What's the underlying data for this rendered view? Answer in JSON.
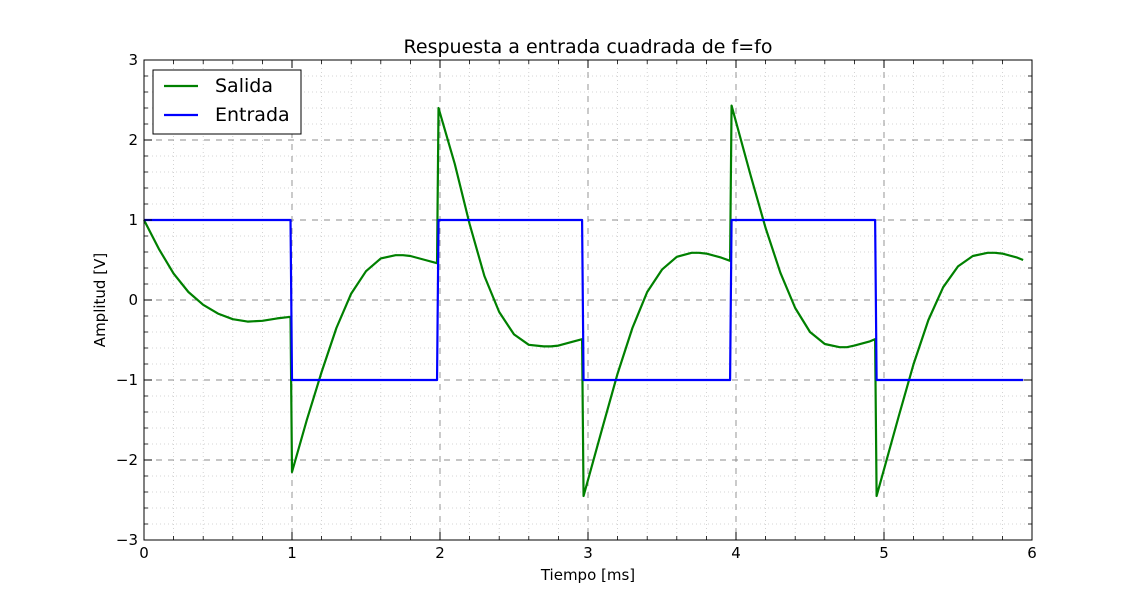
{
  "chart_data": {
    "type": "line",
    "title": "Respuesta a entrada cuadrada de f=fo",
    "xlabel": "Tiempo [ms]",
    "ylabel": "Amplitud [V]",
    "xlim": [
      0,
      6
    ],
    "ylim": [
      -3,
      3
    ],
    "x_ticks": [
      "0",
      "1",
      "2",
      "3",
      "4",
      "5",
      "6"
    ],
    "y_ticks": [
      "−3",
      "−2",
      "−1",
      "0",
      "1",
      "2",
      "3"
    ],
    "grid": "major dashed, minor dotted",
    "legend_position": "top-left",
    "series": [
      {
        "name": "Salida",
        "color": "#008000",
        "x": [
          0,
          0.1,
          0.2,
          0.3,
          0.4,
          0.5,
          0.6,
          0.7,
          0.8,
          0.9,
          0.99,
          1.0,
          1.1,
          1.2,
          1.3,
          1.4,
          1.5,
          1.6,
          1.7,
          1.75,
          1.8,
          1.9,
          1.98,
          1.99,
          2.1,
          2.2,
          2.3,
          2.4,
          2.5,
          2.6,
          2.7,
          2.75,
          2.8,
          2.9,
          2.96,
          2.97,
          3.1,
          3.2,
          3.3,
          3.4,
          3.5,
          3.6,
          3.7,
          3.75,
          3.8,
          3.9,
          3.96,
          3.97,
          4.1,
          4.2,
          4.3,
          4.4,
          4.5,
          4.6,
          4.7,
          4.75,
          4.8,
          4.9,
          4.94,
          4.95,
          5.1,
          5.2,
          5.3,
          5.4,
          5.5,
          5.6,
          5.7,
          5.75,
          5.8,
          5.9,
          5.94
        ],
        "y": [
          1.0,
          0.64,
          0.33,
          0.1,
          -0.06,
          -0.17,
          -0.24,
          -0.27,
          -0.26,
          -0.23,
          -0.21,
          -2.15,
          -1.5,
          -0.9,
          -0.35,
          0.08,
          0.36,
          0.52,
          0.56,
          0.56,
          0.55,
          0.5,
          0.46,
          2.4,
          1.7,
          0.95,
          0.3,
          -0.15,
          -0.43,
          -0.56,
          -0.58,
          -0.58,
          -0.57,
          -0.52,
          -0.49,
          -2.45,
          -1.58,
          -0.92,
          -0.35,
          0.1,
          0.38,
          0.54,
          0.59,
          0.59,
          0.58,
          0.53,
          0.49,
          2.43,
          1.55,
          0.9,
          0.34,
          -0.1,
          -0.4,
          -0.55,
          -0.59,
          -0.59,
          -0.57,
          -0.52,
          -0.49,
          -2.45,
          -1.45,
          -0.8,
          -0.25,
          0.16,
          0.42,
          0.55,
          0.59,
          0.59,
          0.58,
          0.53,
          0.5
        ]
      },
      {
        "name": "Entrada",
        "color": "#0000ff",
        "x": [
          0,
          0.99,
          1.0,
          1.98,
          1.99,
          2.96,
          2.97,
          3.96,
          3.97,
          4.94,
          4.95,
          5.94
        ],
        "y": [
          1,
          1,
          -1,
          -1,
          1,
          1,
          -1,
          -1,
          1,
          1,
          -1,
          -1
        ]
      }
    ]
  }
}
